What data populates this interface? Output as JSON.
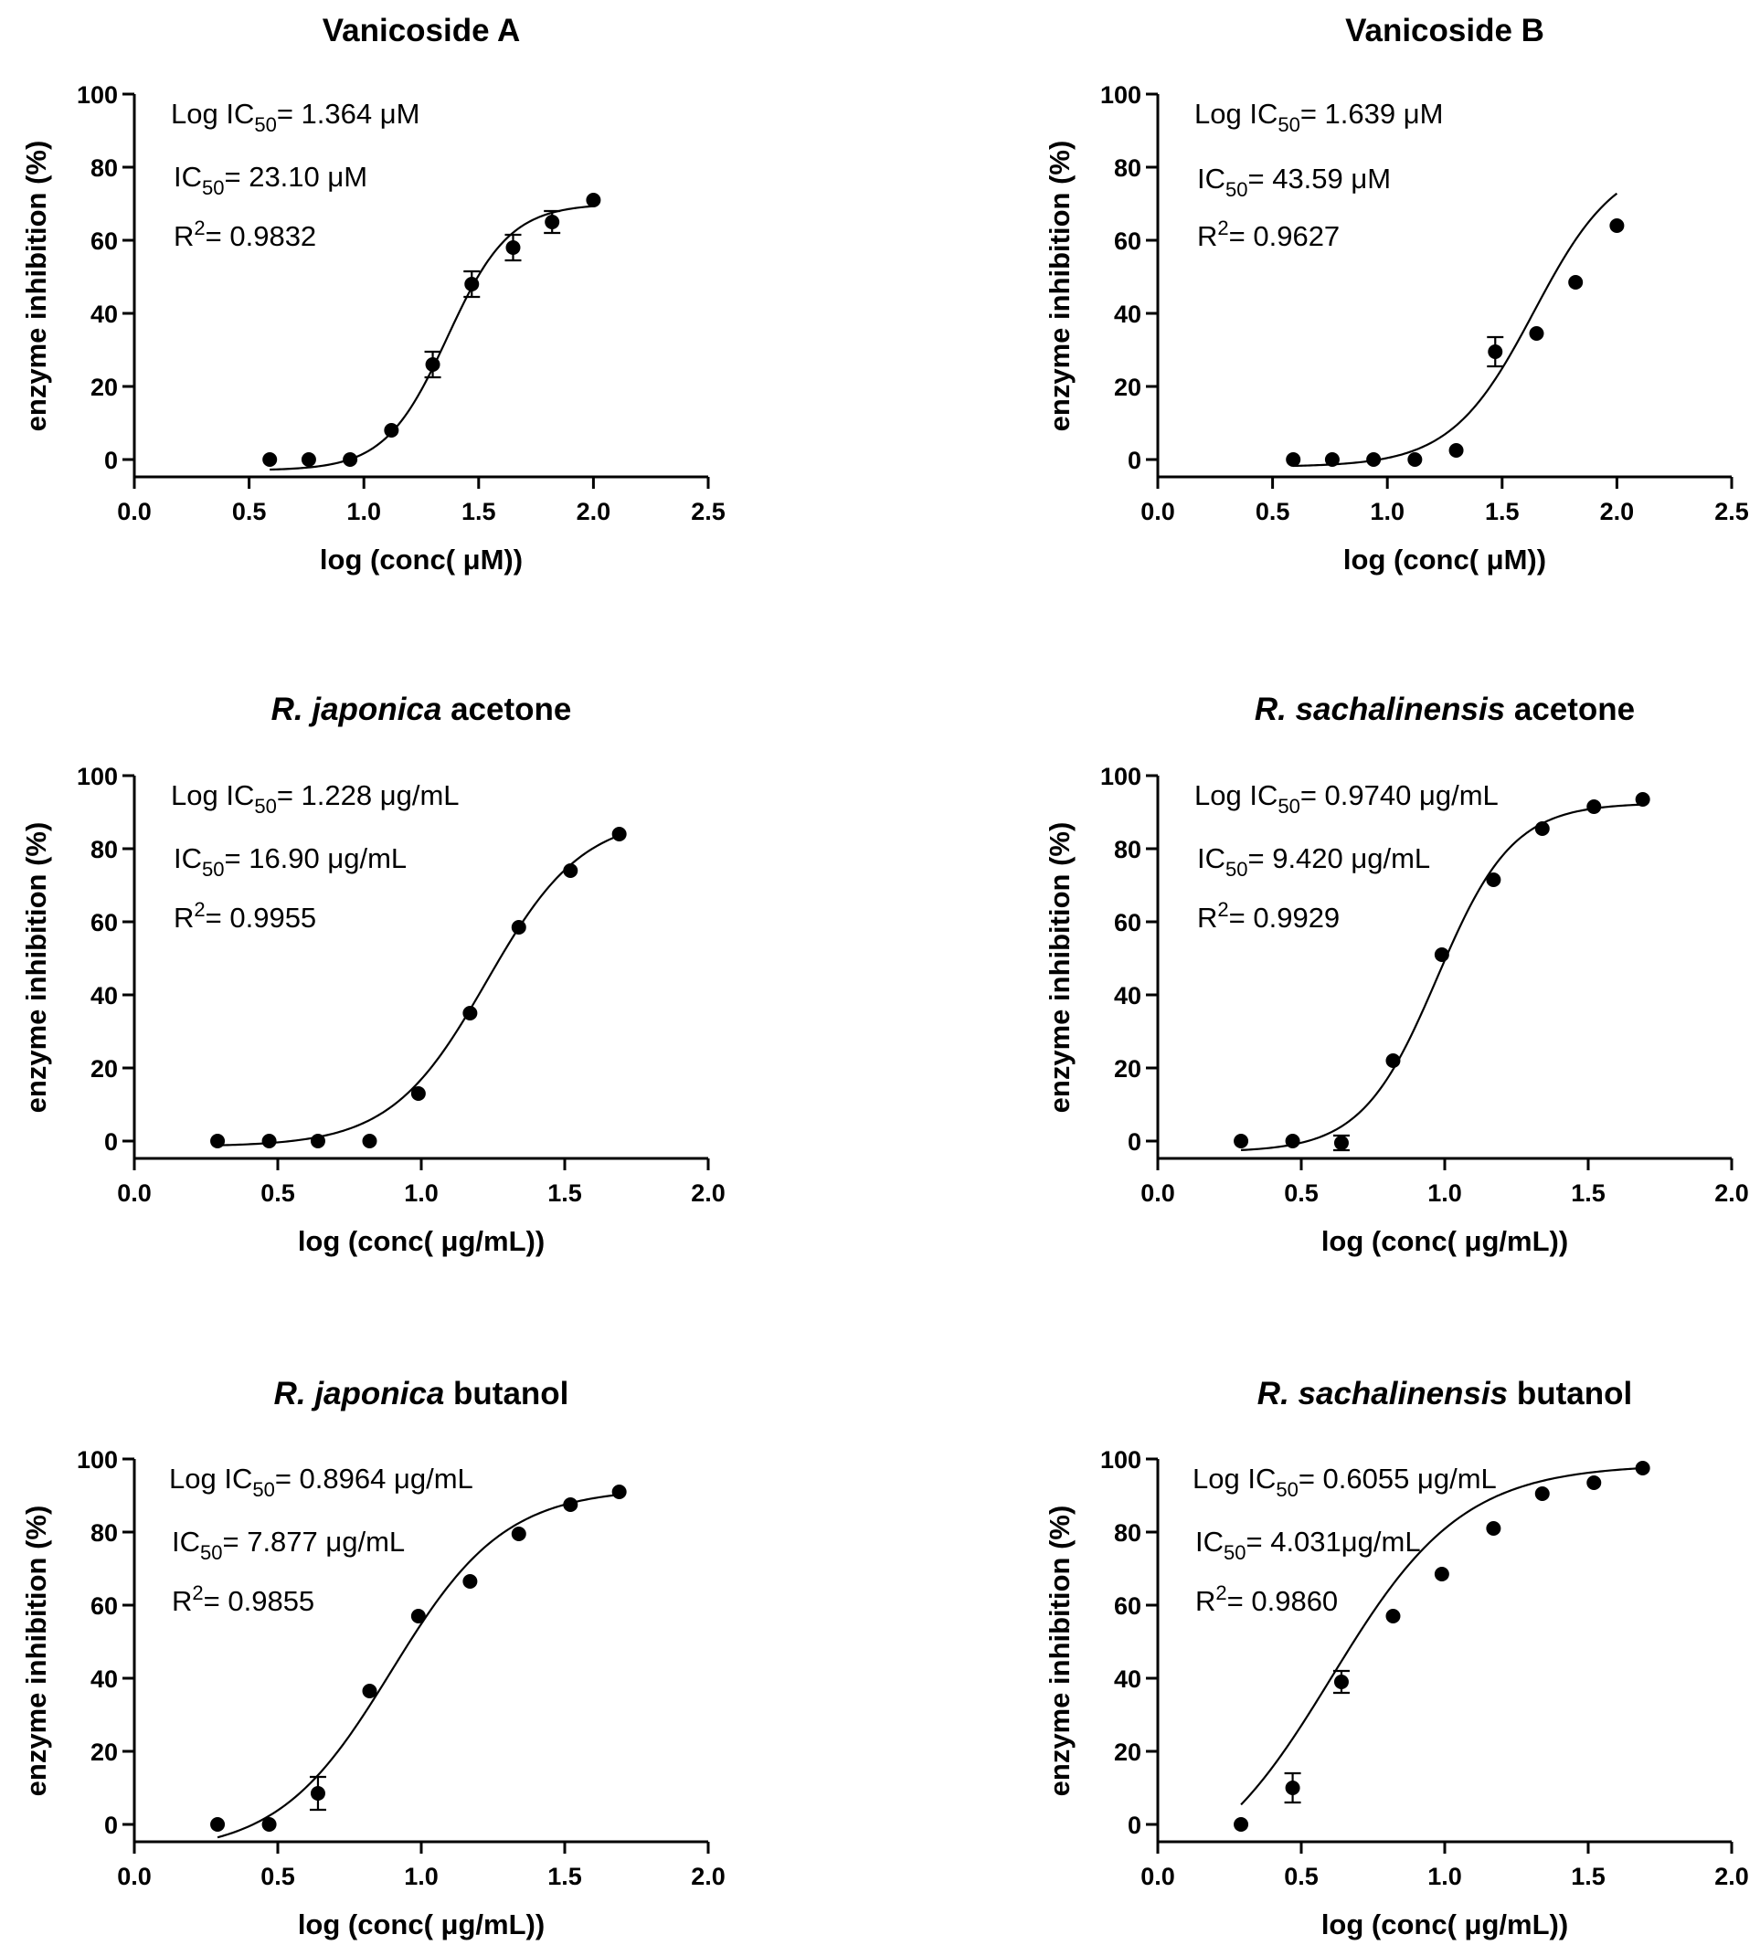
{
  "chart_data": [
    {
      "type": "scatter",
      "title": "Vanicoside A",
      "title_italic": "",
      "title_rest": "Vanicoside A",
      "xlabel": "log (conc( μM))",
      "ylabel": "enzyme inhibition (%)",
      "xlim": [
        0.0,
        2.5
      ],
      "ylim": [
        -5,
        100
      ],
      "xticks": [
        0.0,
        0.5,
        1.0,
        1.5,
        2.0,
        2.5
      ],
      "xtick_labels": [
        "0.0",
        "0.5",
        "1.0",
        "1.5",
        "2.0",
        "2.5"
      ],
      "yticks": [
        0,
        20,
        40,
        60,
        80,
        100
      ],
      "ytick_labels": [
        "0",
        "20",
        "40",
        "60",
        "80",
        "100"
      ],
      "annotations": {
        "log_ic50_prefix": "Log IC",
        "log_ic50_sub": "50",
        "log_ic50_value": "= 1.364 μM",
        "ic50_prefix": "IC",
        "ic50_sub": "50",
        "ic50_value": "= 23.10 μM",
        "r2_prefix": "R",
        "r2_sup": "2",
        "r2_value": "= 0.9832"
      },
      "x": [
        0.59,
        0.76,
        0.94,
        1.12,
        1.3,
        1.47,
        1.65,
        1.82,
        2.0
      ],
      "y": [
        0,
        0,
        0,
        8,
        26,
        48,
        58,
        65,
        71
      ],
      "yerr": [
        0,
        0,
        0,
        0,
        3.5,
        3.5,
        3.5,
        3.0,
        0
      ],
      "fit": {
        "bottom": -3,
        "top": 70,
        "logIC50": 1.364,
        "hill": 3.2,
        "xrange": [
          0.59,
          2.0
        ]
      }
    },
    {
      "type": "scatter",
      "title": "Vanicoside B",
      "title_italic": "",
      "title_rest": "Vanicoside B",
      "xlabel": "log (conc( μM))",
      "ylabel": "enzyme inhibition (%)",
      "xlim": [
        0.0,
        2.5
      ],
      "ylim": [
        -5,
        100
      ],
      "xticks": [
        0.0,
        0.5,
        1.0,
        1.5,
        2.0,
        2.5
      ],
      "xtick_labels": [
        "0.0",
        "0.5",
        "1.0",
        "1.5",
        "2.0",
        "2.5"
      ],
      "yticks": [
        0,
        20,
        40,
        60,
        80,
        100
      ],
      "ytick_labels": [
        "0",
        "20",
        "40",
        "60",
        "80",
        "100"
      ],
      "annotations": {
        "log_ic50_prefix": "Log IC",
        "log_ic50_sub": "50",
        "log_ic50_value": "= 1.639 μM",
        "ic50_prefix": "IC",
        "ic50_sub": "50",
        "ic50_value": "= 43.59 μM",
        "r2_prefix": "R",
        "r2_sup": "2",
        "r2_value": "= 0.9627"
      },
      "x": [
        0.59,
        0.76,
        0.94,
        1.12,
        1.3,
        1.47,
        1.65,
        1.82,
        2.0
      ],
      "y": [
        0,
        0,
        0,
        0,
        2.5,
        29.5,
        34.5,
        48.5,
        64
      ],
      "yerr": [
        0,
        0,
        0,
        0,
        0,
        4.0,
        0,
        0,
        0
      ],
      "fit": {
        "bottom": -2,
        "top": 83,
        "logIC50": 1.639,
        "hill": 2.4,
        "xrange": [
          0.59,
          2.0
        ]
      }
    },
    {
      "type": "scatter",
      "title": "R. japonica acetone",
      "title_italic": "R. japonica",
      "title_rest": " acetone",
      "xlabel": "log (conc( μg/mL))",
      "ylabel": "enzyme inhibition (%)",
      "xlim": [
        0.0,
        2.0
      ],
      "ylim": [
        -5,
        100
      ],
      "xticks": [
        0.0,
        0.5,
        1.0,
        1.5,
        2.0
      ],
      "xtick_labels": [
        "0.0",
        "0.5",
        "1.0",
        "1.5",
        "2.0"
      ],
      "yticks": [
        0,
        20,
        40,
        60,
        80,
        100
      ],
      "ytick_labels": [
        "0",
        "20",
        "40",
        "60",
        "80",
        "100"
      ],
      "annotations": {
        "log_ic50_prefix": "Log IC",
        "log_ic50_sub": "50",
        "log_ic50_value": "= 1.228 μg/mL",
        "ic50_prefix": "IC",
        "ic50_sub": "50",
        "ic50_value": "= 16.90 μg/mL",
        "r2_prefix": "R",
        "r2_sup": "2",
        "r2_value": "= 0.9955"
      },
      "x": [
        0.29,
        0.47,
        0.64,
        0.82,
        0.99,
        1.17,
        1.34,
        1.52,
        1.69
      ],
      "y": [
        0,
        0,
        0,
        0,
        13,
        35,
        58.5,
        74,
        84
      ],
      "yerr": [
        0,
        0,
        0,
        0,
        0,
        0,
        0,
        0,
        0
      ],
      "fit": {
        "bottom": -1.5,
        "top": 89,
        "logIC50": 1.228,
        "hill": 2.6,
        "xrange": [
          0.29,
          1.69
        ]
      }
    },
    {
      "type": "scatter",
      "title": "R. sachalinensis acetone",
      "title_italic": "R. sachalinensis",
      "title_rest": " acetone",
      "xlabel": "log (conc( μg/mL))",
      "ylabel": "enzyme inhibition (%)",
      "xlim": [
        0.0,
        2.0
      ],
      "ylim": [
        -5,
        100
      ],
      "xticks": [
        0.0,
        0.5,
        1.0,
        1.5,
        2.0
      ],
      "xtick_labels": [
        "0.0",
        "0.5",
        "1.0",
        "1.5",
        "2.0"
      ],
      "yticks": [
        0,
        20,
        40,
        60,
        80,
        100
      ],
      "ytick_labels": [
        "0",
        "20",
        "40",
        "60",
        "80",
        "100"
      ],
      "annotations": {
        "log_ic50_prefix": "Log IC",
        "log_ic50_sub": "50",
        "log_ic50_value": "= 0.9740 μg/mL",
        "ic50_prefix": "IC",
        "ic50_sub": "50",
        "ic50_value": "= 9.420 μg/mL",
        "r2_prefix": "R",
        "r2_sup": "2",
        "r2_value": "= 0.9929"
      },
      "x": [
        0.29,
        0.47,
        0.64,
        0.82,
        0.99,
        1.17,
        1.34,
        1.52,
        1.69
      ],
      "y": [
        0,
        0,
        -0.5,
        22,
        51,
        71.5,
        85.5,
        91.5,
        93.5
      ],
      "yerr": [
        0,
        0,
        2.0,
        0,
        0,
        0,
        0,
        0,
        0
      ],
      "fit": {
        "bottom": -3,
        "top": 92.5,
        "logIC50": 0.974,
        "hill": 3.3,
        "xrange": [
          0.29,
          1.69
        ]
      }
    },
    {
      "type": "scatter",
      "title": "R. japonica butanol",
      "title_italic": "R. japonica",
      "title_rest": " butanol",
      "xlabel": "log (conc( μg/mL))",
      "ylabel": "enzyme inhibition (%)",
      "xlim": [
        0.0,
        2.0
      ],
      "ylim": [
        -5,
        100
      ],
      "xticks": [
        0.0,
        0.5,
        1.0,
        1.5,
        2.0
      ],
      "xtick_labels": [
        "0.0",
        "0.5",
        "1.0",
        "1.5",
        "2.0"
      ],
      "yticks": [
        0,
        20,
        40,
        60,
        80,
        100
      ],
      "ytick_labels": [
        "0",
        "20",
        "40",
        "60",
        "80",
        "100"
      ],
      "annotations": {
        "log_ic50_prefix": "Log IC",
        "log_ic50_sub": "50",
        "log_ic50_value": "= 0.8964 μg/mL",
        "ic50_prefix": "IC",
        "ic50_sub": "50",
        "ic50_value": "= 7.877 μg/mL",
        "r2_prefix": "R",
        "r2_sup": "2",
        "r2_value": "= 0.9855"
      },
      "x": [
        0.29,
        0.47,
        0.64,
        0.82,
        0.99,
        1.17,
        1.34,
        1.52,
        1.69
      ],
      "y": [
        0,
        0,
        8.5,
        36.5,
        57,
        66.5,
        79.5,
        87.5,
        91
      ],
      "yerr": [
        0,
        0,
        4.5,
        0,
        0,
        0,
        0,
        0,
        0
      ],
      "fit": {
        "bottom": -8,
        "top": 92,
        "logIC50": 0.896,
        "hill": 2.2,
        "xrange": [
          0.29,
          1.69
        ]
      }
    },
    {
      "type": "scatter",
      "title": "R. sachalinensis butanol",
      "title_italic": "R. sachalinensis",
      "title_rest": " butanol",
      "xlabel": "log (conc( μg/mL))",
      "ylabel": "enzyme inhibition (%)",
      "xlim": [
        0.0,
        2.0
      ],
      "ylim": [
        -5,
        100
      ],
      "xticks": [
        0.0,
        0.5,
        1.0,
        1.5,
        2.0
      ],
      "xtick_labels": [
        "0.0",
        "0.5",
        "1.0",
        "1.5",
        "2.0"
      ],
      "yticks": [
        0,
        20,
        40,
        60,
        80,
        100
      ],
      "ytick_labels": [
        "0",
        "20",
        "40",
        "60",
        "80",
        "100"
      ],
      "annotations": {
        "log_ic50_prefix": "Log IC",
        "log_ic50_sub": "50",
        "log_ic50_value": "= 0.6055 μg/mL",
        "ic50_prefix": "IC",
        "ic50_sub": "50",
        "ic50_value": "= 4.031μg/mL",
        "r2_prefix": "R",
        "r2_sup": "2",
        "r2_value": "= 0.9860"
      },
      "x": [
        0.29,
        0.47,
        0.64,
        0.82,
        0.99,
        1.17,
        1.34,
        1.52,
        1.69
      ],
      "y": [
        0,
        10,
        39,
        57,
        68.5,
        81,
        90.5,
        93.5,
        97.5
      ],
      "yerr": [
        0,
        4.0,
        3.0,
        0,
        0,
        0,
        0,
        0,
        0
      ],
      "fit": {
        "bottom": -18,
        "top": 98.5,
        "logIC50": 0.6055,
        "hill": 1.9,
        "xrange": [
          0.29,
          1.69
        ]
      }
    }
  ]
}
